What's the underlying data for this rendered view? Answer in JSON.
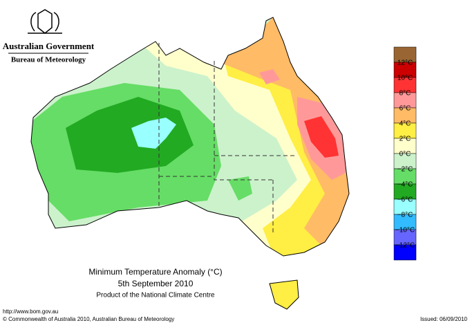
{
  "header": {
    "agency": "Australian Government",
    "bureau": "Bureau of Meteorology"
  },
  "map": {
    "title": "Minimum Temperature Anomaly (°C)",
    "date": "5th September 2010",
    "product": "Product of the National Climate Centre"
  },
  "legend": {
    "colors": [
      "#996633",
      "#cc0000",
      "#ff3333",
      "#ff9999",
      "#ffbb66",
      "#ffee44",
      "#ffffcc",
      "#ccf2cc",
      "#66dd66",
      "#22aa22",
      "#99ffff",
      "#33bbff",
      "#6666ff",
      "#0000ff"
    ],
    "labels": [
      "12°C",
      "10°C",
      "8°C",
      "6°C",
      "4°C",
      "2°C",
      "0°C",
      "−2°C",
      "−4°C",
      "−6°C",
      "−8°C",
      "−10°C",
      "−12°C"
    ]
  },
  "footer": {
    "url": "http://www.bom.gov.au",
    "copyright": "© Commonwealth of Australia 2010, Australian Bureau of Meteorology",
    "issued": "Issued: 06/09/2010"
  }
}
